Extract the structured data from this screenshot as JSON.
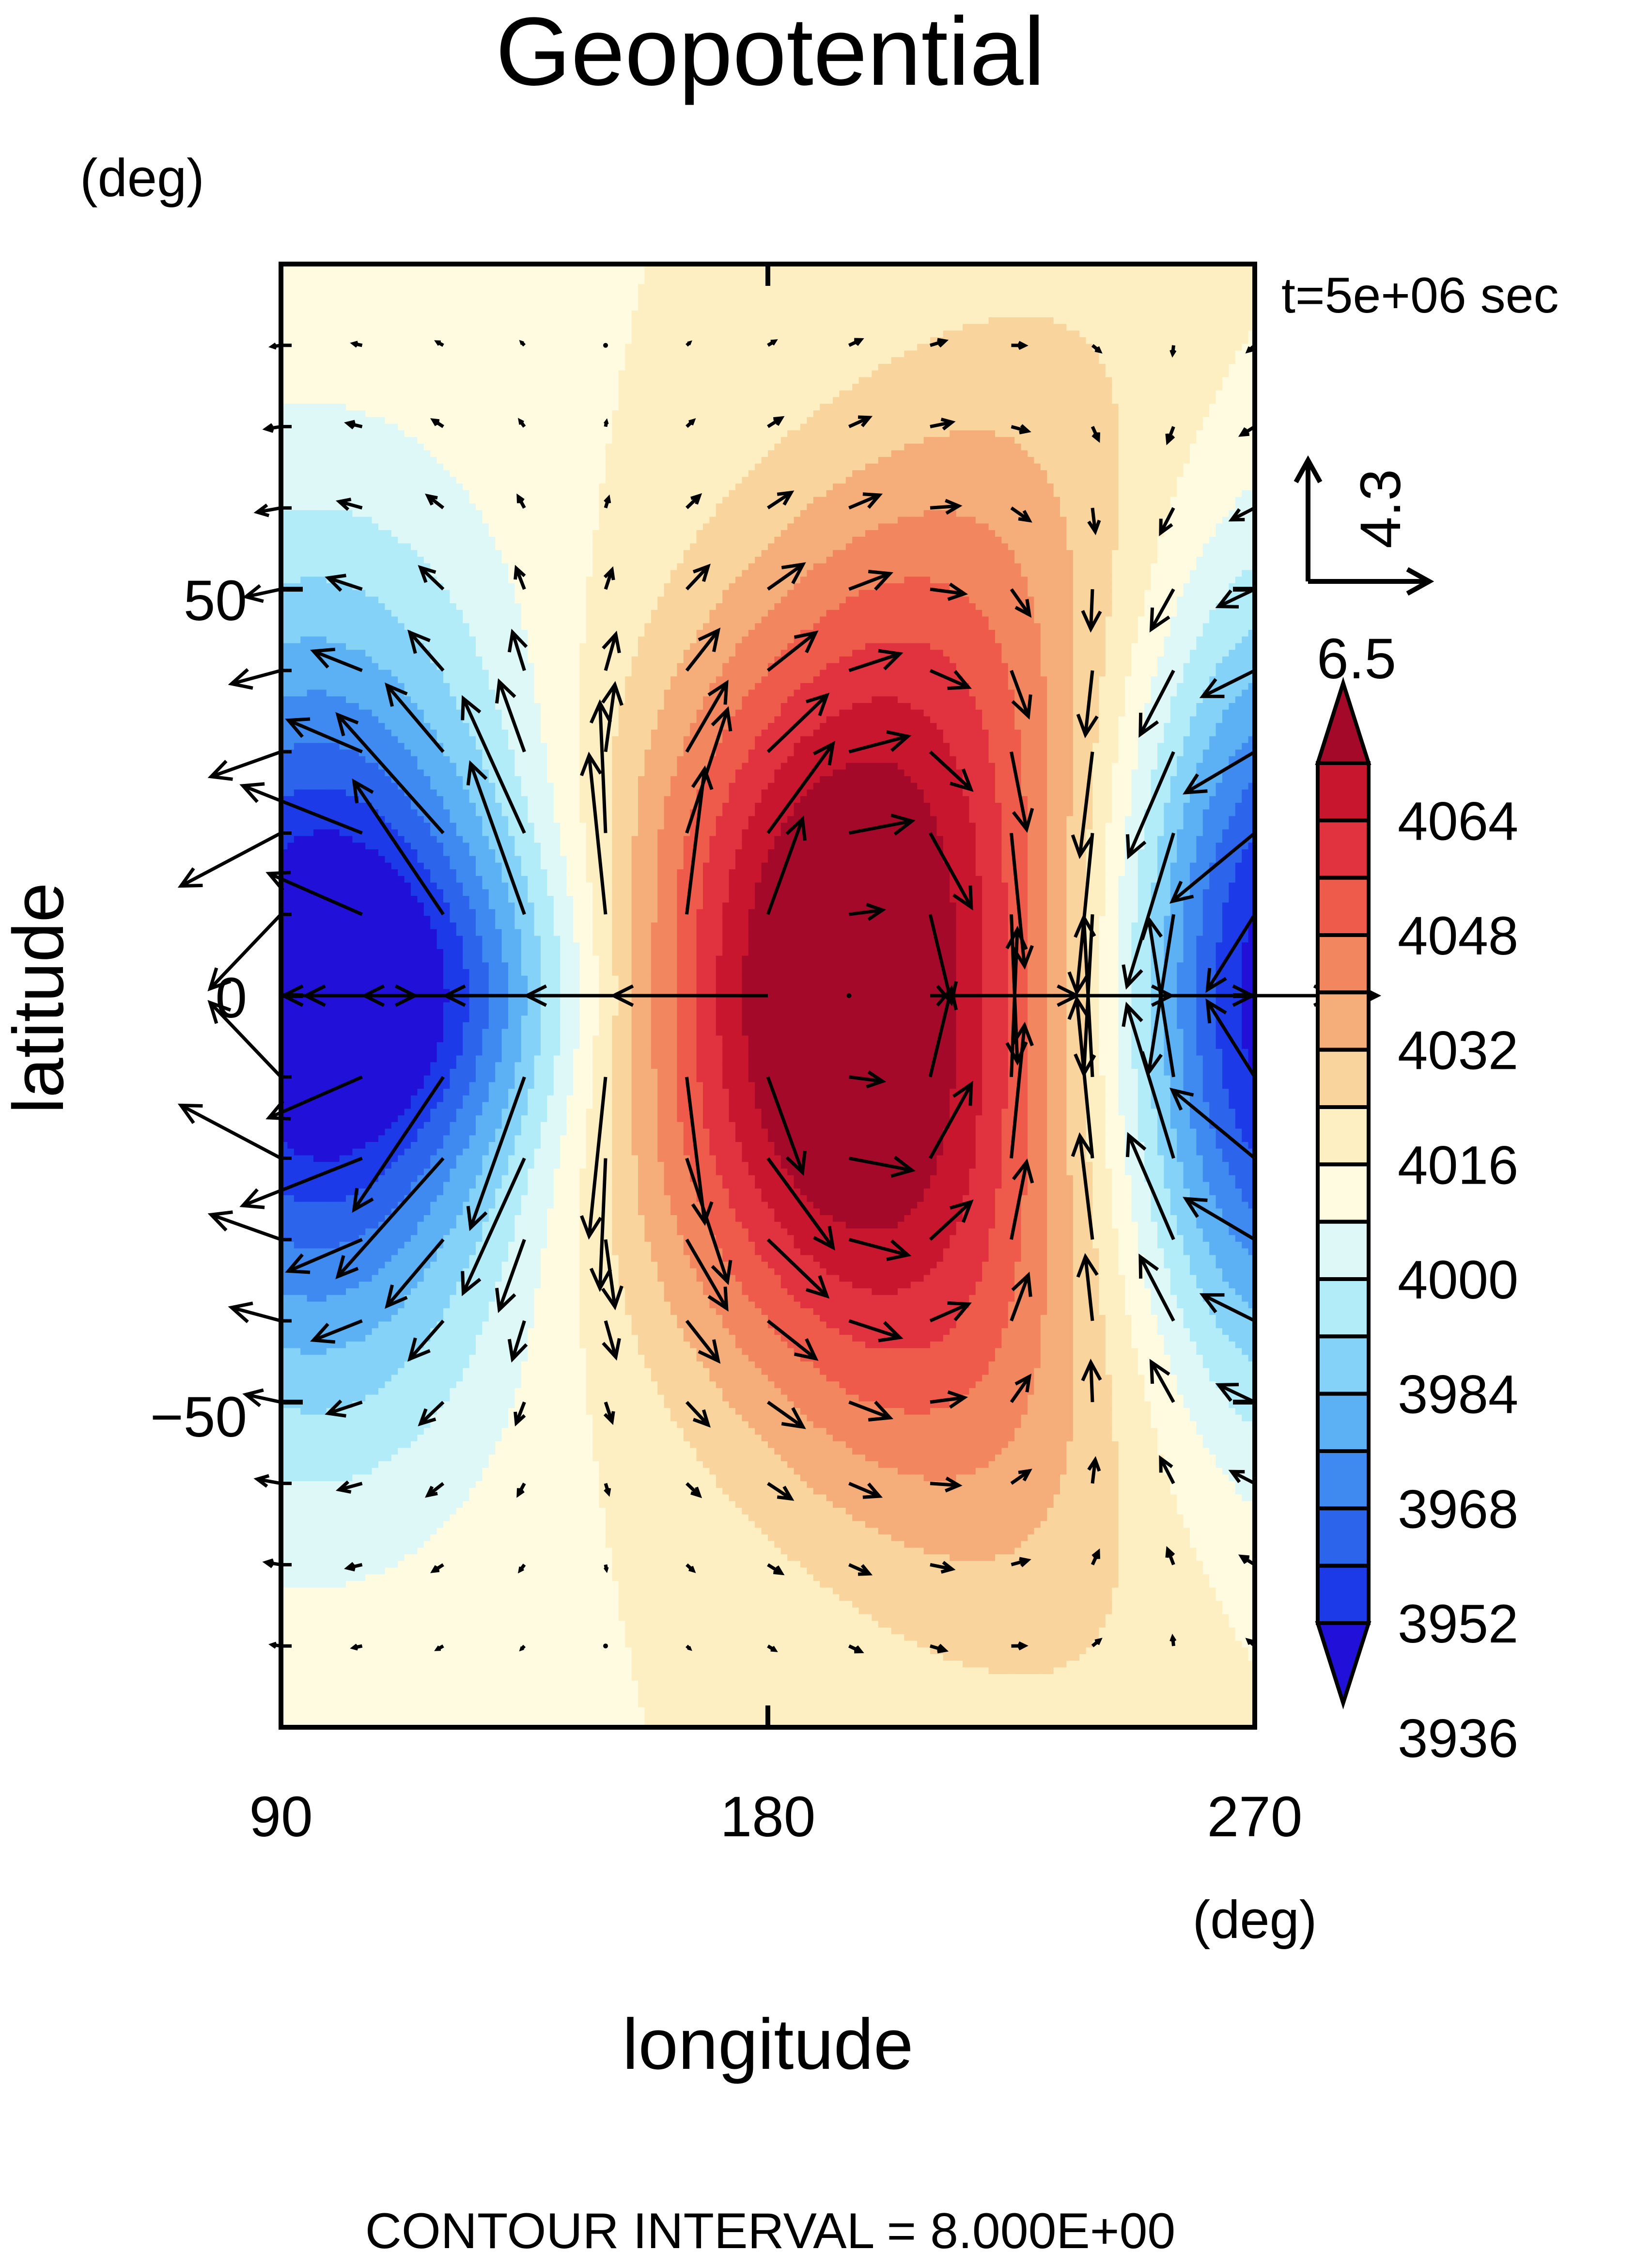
{
  "chart_data": {
    "type": "contour",
    "title": "Geopotential",
    "xlabel": "longitude",
    "ylabel": "latitude",
    "x_unit": "(deg)",
    "y_unit": "(deg)",
    "xlim": [
      90,
      270
    ],
    "ylim": [
      -90,
      90
    ],
    "x_ticks": [
      "90",
      "180",
      "270"
    ],
    "x_tick_values": [
      90,
      180,
      270
    ],
    "y_ticks": [
      "50",
      "0",
      "−50"
    ],
    "y_tick_values": [
      50,
      0,
      -50
    ],
    "time_label": "t=5e+06 sec",
    "vector_reference": {
      "x_value": "6.5",
      "y_value": "4.3"
    },
    "contour_interval_label": "CONTOUR INTERVAL = 8.000E+00",
    "contour_interval": 8,
    "colorbar": {
      "labels": [
        "4064",
        "4048",
        "4032",
        "4016",
        "4000",
        "3984",
        "3968",
        "3952",
        "3936"
      ],
      "label_values": [
        4064,
        4048,
        4032,
        4016,
        4000,
        3984,
        3968,
        3952,
        3936
      ],
      "min": 3928,
      "max": 4072,
      "colors": [
        "#2010d8",
        "#1c3ae8",
        "#2c64ec",
        "#3f8af0",
        "#5cb0f4",
        "#85d2f8",
        "#b2ecf9",
        "#def8f8",
        "#fefbe0",
        "#fdefc2",
        "#f9d49c",
        "#f5ae7a",
        "#f2865f",
        "#ef5b4b",
        "#e0323f",
        "#c8162f",
        "#a5092a"
      ]
    },
    "field": {
      "mean": 4000,
      "components": [
        {
          "lon_center": 195,
          "lat_center": 0,
          "amplitude": 73,
          "lon_width": 29,
          "lat_width": 40,
          "lat_shift_per_deg_lon": 1.5,
          "lat_shift_width": 55
        },
        {
          "lon_center": 96,
          "lat_center": 0,
          "amplitude": -70,
          "lon_width": 26,
          "lat_width": 35,
          "lat_shift_per_deg_lon": 0,
          "lat_shift_width": 55
        },
        {
          "lon_center": 275,
          "lat_center": 0,
          "amplitude": -72,
          "lon_width": 21,
          "lat_width": 33,
          "lat_shift_per_deg_lon": 0,
          "lat_shift_width": 55
        },
        {
          "lon_center": 120,
          "lat_center": 0,
          "amplitude": -22,
          "lon_width": 24,
          "lat_width": 14,
          "lat_shift_per_deg_lon": 0,
          "lat_shift_width": 55
        }
      ]
    },
    "wind_vectors": {
      "grid_lon_start": 90,
      "grid_lon_step": 15,
      "grid_lon_count": 13,
      "grid_lat_start": -80,
      "grid_lat_step": 10,
      "grid_lat_count": 17,
      "description": "geostrophic-like wind derived from the geopotential field, strongest near the equator"
    }
  }
}
